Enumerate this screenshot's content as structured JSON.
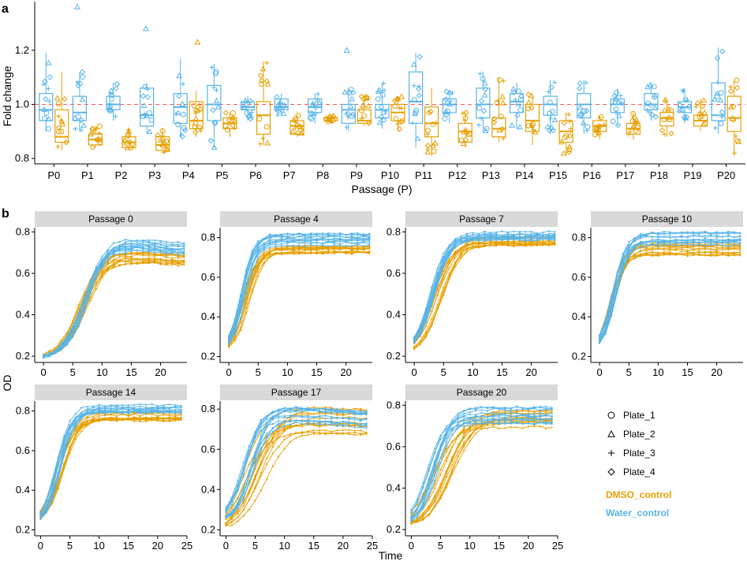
{
  "panel_letters": {
    "a": "a",
    "b": "b"
  },
  "colors": {
    "DMSO_control": "#E69F00",
    "Water_control": "#56B4E9",
    "reference": "#ff5555"
  },
  "legend": {
    "shapes": [
      {
        "label": "Plate_1",
        "shape": "circle"
      },
      {
        "label": "Plate_2",
        "shape": "triangle"
      },
      {
        "label": "Plate_3",
        "shape": "plus"
      },
      {
        "label": "Plate_4",
        "shape": "diamond"
      }
    ],
    "groups": [
      {
        "label": "DMSO_control",
        "color": "#E69F00"
      },
      {
        "label": "Water_control",
        "color": "#56B4E9"
      }
    ]
  },
  "chart_data": [
    {
      "type": "box",
      "panel": "a",
      "xlabel": "Passage (P)",
      "ylabel": "Fold change",
      "ylim": [
        0.78,
        1.38
      ],
      "yticks": [
        "0.8",
        "1.0",
        "1.2"
      ],
      "reference_line": 1.0,
      "categories": [
        "P0",
        "P1",
        "P2",
        "P3",
        "P4",
        "P5",
        "P6",
        "P7",
        "P8",
        "P9",
        "P10",
        "P11",
        "P12",
        "P13",
        "P14",
        "P15",
        "P16",
        "P17",
        "P18",
        "P19",
        "P20"
      ],
      "series": [
        {
          "name": "Water_control",
          "color": "#56B4E9",
          "boxes": [
            [
              0.9,
              0.94,
              0.98,
              1.04,
              1.19
            ],
            [
              0.9,
              0.94,
              0.97,
              1.03,
              1.12
            ],
            [
              0.94,
              0.98,
              1.0,
              1.03,
              1.08
            ],
            [
              0.89,
              0.92,
              0.96,
              1.06,
              1.08
            ],
            [
              0.88,
              0.93,
              0.99,
              1.04,
              1.17
            ],
            [
              0.84,
              0.94,
              1.0,
              1.07,
              1.15
            ],
            [
              0.94,
              0.98,
              0.99,
              1.01,
              1.03
            ],
            [
              0.96,
              0.98,
              0.99,
              1.02,
              1.04
            ],
            [
              0.93,
              0.97,
              0.99,
              1.02,
              1.04
            ],
            [
              0.9,
              0.93,
              0.98,
              1.0,
              1.06
            ],
            [
              0.91,
              0.95,
              0.98,
              1.0,
              1.08
            ],
            [
              0.84,
              0.93,
              1.01,
              1.12,
              1.19
            ],
            [
              0.93,
              0.97,
              1.0,
              1.02,
              1.05
            ],
            [
              0.9,
              0.95,
              1.0,
              1.06,
              1.12
            ],
            [
              0.91,
              0.97,
              1.01,
              1.04,
              1.08
            ],
            [
              0.89,
              0.96,
              1.0,
              1.03,
              1.09
            ],
            [
              0.89,
              0.95,
              1.0,
              1.04,
              1.09
            ],
            [
              0.92,
              0.97,
              1.0,
              1.02,
              1.06
            ],
            [
              0.94,
              0.98,
              1.0,
              1.04,
              1.08
            ],
            [
              0.93,
              0.97,
              0.99,
              1.01,
              1.06
            ],
            [
              0.89,
              0.94,
              0.96,
              1.08,
              1.21
            ]
          ],
          "outliers": [
            [],
            [
              1.36
            ],
            [],
            [
              1.28
            ],
            [],
            [],
            [],
            [],
            [],
            [
              1.2
            ],
            [],
            [],
            [],
            [],
            [],
            [],
            [],
            [],
            [],
            [],
            []
          ]
        },
        {
          "name": "DMSO_control",
          "color": "#E69F00",
          "boxes": [
            [
              0.83,
              0.86,
              0.88,
              0.98,
              1.12
            ],
            [
              0.84,
              0.85,
              0.87,
              0.89,
              0.92
            ],
            [
              0.83,
              0.84,
              0.86,
              0.88,
              0.91
            ],
            [
              0.82,
              0.83,
              0.85,
              0.88,
              0.91
            ],
            [
              0.88,
              0.91,
              0.94,
              1.01,
              1.05
            ],
            [
              0.88,
              0.91,
              0.93,
              0.95,
              0.97
            ],
            [
              0.85,
              0.89,
              0.96,
              1.01,
              1.16
            ],
            [
              0.88,
              0.89,
              0.92,
              0.94,
              0.96
            ],
            [
              0.93,
              0.94,
              0.95,
              0.95,
              0.96
            ],
            [
              0.92,
              0.93,
              0.94,
              0.98,
              1.03
            ],
            [
              0.9,
              0.94,
              0.97,
              1.0,
              1.03
            ],
            [
              0.81,
              0.88,
              0.93,
              0.99,
              1.06
            ],
            [
              0.84,
              0.86,
              0.9,
              0.93,
              0.97
            ],
            [
              0.86,
              0.88,
              0.91,
              0.95,
              1.1
            ],
            [
              0.85,
              0.9,
              0.94,
              1.0,
              1.04
            ],
            [
              0.81,
              0.86,
              0.9,
              0.94,
              0.97
            ],
            [
              0.87,
              0.9,
              0.92,
              0.94,
              0.96
            ],
            [
              0.87,
              0.89,
              0.91,
              0.93,
              0.97
            ],
            [
              0.88,
              0.92,
              0.95,
              0.97,
              1.02
            ],
            [
              0.9,
              0.92,
              0.94,
              0.96,
              1.02
            ],
            [
              0.81,
              0.9,
              0.95,
              1.03,
              1.09
            ]
          ],
          "outliers": [
            [],
            [],
            [],
            [],
            [
              1.23
            ],
            [],
            [],
            [],
            [],
            [],
            [],
            [],
            [],
            [],
            [],
            [],
            [],
            [],
            [],
            [],
            []
          ]
        }
      ]
    },
    {
      "type": "line",
      "panel": "b",
      "ylabel": "OD",
      "xlabel": "Time",
      "facets": [
        {
          "title": "Passage 0",
          "xticks": [
            0,
            5,
            10,
            15,
            20
          ],
          "xlim": [
            -1.5,
            24.5
          ],
          "yticks": [
            0.2,
            0.4,
            0.6,
            0.8
          ],
          "ylim": [
            0.17,
            0.82
          ],
          "curves": [
            {
              "group": "Water_control",
              "y0": 0.19,
              "plateau": [
                0.72,
                0.78
              ],
              "rate": 0.55,
              "t_mid": [
                6.5,
                8
              ],
              "late_drop": 0.03
            },
            {
              "group": "DMSO_control",
              "y0": 0.19,
              "plateau": [
                0.66,
                0.71
              ],
              "rate": 0.55,
              "t_mid": [
                6,
                7.5
              ],
              "late_drop": 0.02
            }
          ]
        },
        {
          "title": "Passage 4",
          "xticks": [
            0,
            5,
            10,
            15,
            20
          ],
          "xlim": [
            -1.5,
            24.5
          ],
          "yticks": [
            0.2,
            0.4,
            0.6,
            0.8
          ],
          "ylim": [
            0.17,
            0.85
          ],
          "curves": [
            {
              "group": "Water_control",
              "y0": 0.22,
              "plateau": [
                0.76,
                0.82
              ],
              "rate": 0.9,
              "t_mid": [
                2,
                3
              ],
              "late_drop": 0.0
            },
            {
              "group": "DMSO_control",
              "y0": 0.22,
              "plateau": [
                0.72,
                0.76
              ],
              "rate": 0.8,
              "t_mid": [
                2,
                3.5
              ],
              "late_drop": 0.0
            }
          ]
        },
        {
          "title": "Passage 7",
          "xticks": [
            0,
            5,
            10,
            15,
            20
          ],
          "xlim": [
            -1.5,
            24.5
          ],
          "yticks": [
            0.2,
            0.4,
            0.6,
            0.8
          ],
          "ylim": [
            0.17,
            0.82
          ],
          "curves": [
            {
              "group": "Water_control",
              "y0": 0.22,
              "plateau": [
                0.76,
                0.8
              ],
              "rate": 0.7,
              "t_mid": [
                2.5,
                3.5
              ],
              "late_drop": 0.0
            },
            {
              "group": "DMSO_control",
              "y0": 0.21,
              "plateau": [
                0.73,
                0.78
              ],
              "rate": 0.6,
              "t_mid": [
                3,
                5
              ],
              "late_drop": 0.0
            }
          ]
        },
        {
          "title": "Passage 10",
          "xticks": [
            0,
            5,
            10,
            15,
            20
          ],
          "xlim": [
            -1.5,
            24.5
          ],
          "yticks": [
            0.2,
            0.4,
            0.6,
            0.8
          ],
          "ylim": [
            0.17,
            0.85
          ],
          "curves": [
            {
              "group": "Water_control",
              "y0": 0.23,
              "plateau": [
                0.76,
                0.83
              ],
              "rate": 0.9,
              "t_mid": [
                2,
                3
              ],
              "late_drop": 0.0
            },
            {
              "group": "DMSO_control",
              "y0": 0.23,
              "plateau": [
                0.7,
                0.77
              ],
              "rate": 0.9,
              "t_mid": [
                1.8,
                2.8
              ],
              "late_drop": 0.0
            }
          ]
        },
        {
          "title": "Passage 14",
          "xticks": [
            0,
            5,
            10,
            15,
            20,
            25
          ],
          "xlim": [
            -1,
            25
          ],
          "yticks": [
            0.2,
            0.4,
            0.6,
            0.8
          ],
          "ylim": [
            0.17,
            0.85
          ],
          "curves": [
            {
              "group": "Water_control",
              "y0": 0.22,
              "plateau": [
                0.79,
                0.83
              ],
              "rate": 0.8,
              "t_mid": [
                2.5,
                3.5
              ],
              "late_drop": 0.0
            },
            {
              "group": "DMSO_control",
              "y0": 0.22,
              "plateau": [
                0.74,
                0.8
              ],
              "rate": 0.7,
              "t_mid": [
                2.5,
                4
              ],
              "late_drop": 0.0
            }
          ]
        },
        {
          "title": "Passage 17",
          "xticks": [
            0,
            5,
            10,
            15,
            20,
            25
          ],
          "xlim": [
            -1,
            25
          ],
          "yticks": [
            0.2,
            0.4,
            0.6,
            0.8
          ],
          "ylim": [
            0.17,
            0.84
          ],
          "curves": [
            {
              "group": "Water_control",
              "y0": 0.24,
              "plateau": [
                0.73,
                0.82
              ],
              "rate": 0.7,
              "t_mid": [
                2.5,
                5
              ],
              "late_drop": 0.02
            },
            {
              "group": "DMSO_control",
              "y0": 0.2,
              "plateau": [
                0.68,
                0.81
              ],
              "rate": 0.5,
              "t_mid": [
                3,
                7
              ],
              "late_drop": 0.01
            }
          ]
        },
        {
          "title": "Passage 20",
          "xticks": [
            0,
            5,
            10,
            15,
            20,
            25
          ],
          "xlim": [
            -1,
            25
          ],
          "yticks": [
            0.2,
            0.4,
            0.6,
            0.8
          ],
          "ylim": [
            0.17,
            0.82
          ],
          "curves": [
            {
              "group": "Water_control",
              "y0": 0.22,
              "plateau": [
                0.7,
                0.8
              ],
              "rate": 0.7,
              "t_mid": [
                2.5,
                4.5
              ],
              "late_drop": 0.0
            },
            {
              "group": "DMSO_control",
              "y0": 0.21,
              "plateau": [
                0.69,
                0.78
              ],
              "rate": 0.5,
              "t_mid": [
                3,
                7
              ],
              "late_drop": 0.0
            }
          ]
        }
      ]
    }
  ]
}
